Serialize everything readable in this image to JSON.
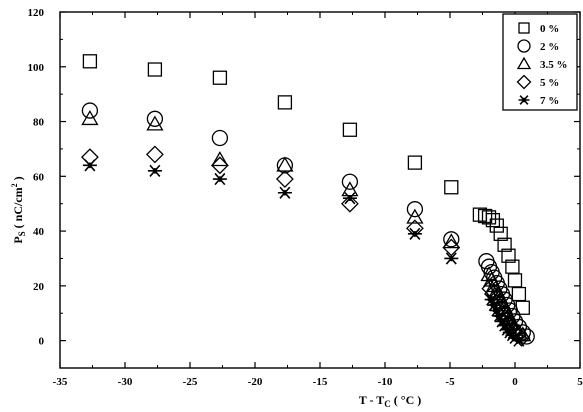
{
  "chart_data": {
    "type": "scatter",
    "title": "",
    "xlabel": "T - T",
    "xlabel_sub": "C",
    "xlabel_unit": " ( °C )",
    "ylabel": "P",
    "ylabel_sub": "S",
    "ylabel_unit": " ( nC/cm",
    "ylabel_sup": "2",
    "ylabel_close": " )",
    "xlim": [
      -35,
      5
    ],
    "ylim": [
      -10,
      120
    ],
    "xticks": [
      -35,
      -30,
      -25,
      -20,
      -15,
      -10,
      -5,
      0,
      5
    ],
    "xtick_labels": [
      "-35",
      "-30",
      "-25",
      "-20",
      "-15",
      "-10",
      "-5",
      "0",
      "5"
    ],
    "yticks": [
      0,
      20,
      40,
      60,
      80,
      100,
      120
    ],
    "ytick_labels": [
      "0",
      "20",
      "40",
      "60",
      "80",
      "100",
      "120"
    ],
    "grid": false,
    "legend_position": "top-right",
    "series": [
      {
        "name": "0 %",
        "marker": "square",
        "x": [
          -32.7,
          -27.7,
          -22.7,
          -17.7,
          -12.7,
          -7.7,
          -4.9,
          -2.7,
          -2.3,
          -2.0,
          -1.7,
          -1.4,
          -1.1,
          -0.8,
          -0.5,
          -0.2,
          0.0,
          0.3,
          0.6
        ],
        "y": [
          102,
          99,
          96,
          87,
          77,
          65,
          56,
          46,
          45.5,
          45,
          44,
          42,
          39,
          35,
          31,
          27,
          22,
          17,
          12
        ]
      },
      {
        "name": "2 %",
        "marker": "circle",
        "x": [
          -32.7,
          -27.7,
          -22.7,
          -17.7,
          -12.7,
          -7.7,
          -4.9,
          -2.2,
          -2.0,
          -1.8,
          -1.6,
          -1.4,
          -1.2,
          -1.0,
          -0.8,
          -0.6,
          -0.4,
          -0.2,
          0.0,
          0.3,
          0.6,
          0.9
        ],
        "y": [
          84,
          81,
          74,
          64,
          58,
          48,
          37,
          29,
          27,
          25,
          23,
          21,
          19,
          17,
          15,
          13,
          11,
          9,
          7,
          5,
          3,
          1.5
        ]
      },
      {
        "name": "3.5 %",
        "marker": "triangle",
        "x": [
          -32.7,
          -27.7,
          -22.7,
          -17.7,
          -12.7,
          -7.7,
          -4.9,
          -2.0,
          -1.8,
          -1.6,
          -1.4,
          -1.2,
          -1.0,
          -0.8,
          -0.6,
          -0.4,
          -0.2,
          0.0,
          0.3,
          0.6
        ],
        "y": [
          81,
          79,
          66,
          64,
          55,
          45,
          36,
          24,
          22,
          20,
          18,
          16,
          14,
          12,
          10,
          8,
          6,
          4,
          3,
          2
        ]
      },
      {
        "name": "5 %",
        "marker": "diamond",
        "x": [
          -32.7,
          -27.7,
          -22.7,
          -17.7,
          -12.7,
          -7.7,
          -4.9,
          -1.9,
          -1.7,
          -1.5,
          -1.3,
          -1.1,
          -0.9,
          -0.7,
          -0.5,
          -0.3,
          -0.1,
          0.2,
          0.5
        ],
        "y": [
          67,
          68,
          64,
          59,
          50,
          41,
          34,
          19,
          17,
          15,
          13,
          11,
          9,
          7.5,
          6,
          4.5,
          3,
          2,
          1
        ]
      },
      {
        "name": "7 %",
        "marker": "asterisk",
        "x": [
          -32.7,
          -27.7,
          -22.7,
          -17.7,
          -12.7,
          -7.7,
          -4.9,
          -1.8,
          -1.6,
          -1.4,
          -1.2,
          -1.0,
          -0.8,
          -0.6,
          -0.4,
          -0.2,
          0.0,
          0.3
        ],
        "y": [
          64,
          62,
          59,
          54,
          52,
          39,
          30,
          15,
          13,
          11,
          9,
          7,
          5.5,
          4,
          3,
          2,
          1,
          0
        ]
      }
    ]
  }
}
